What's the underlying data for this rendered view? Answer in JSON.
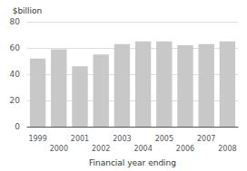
{
  "chart_data": {
    "type": "bar",
    "categories": [
      "1999",
      "2000",
      "2001",
      "2002",
      "2003",
      "2004",
      "2005",
      "2006",
      "2007",
      "2008"
    ],
    "values": [
      52,
      59,
      46,
      55,
      63,
      65,
      65,
      62,
      63,
      65
    ],
    "color": "#c8c8c8",
    "ylabel": "$billion",
    "xlabel": "Financial year ending",
    "ylim": [
      0,
      80
    ],
    "yticks": [
      0,
      20,
      40,
      60,
      80
    ],
    "grid": true
  }
}
